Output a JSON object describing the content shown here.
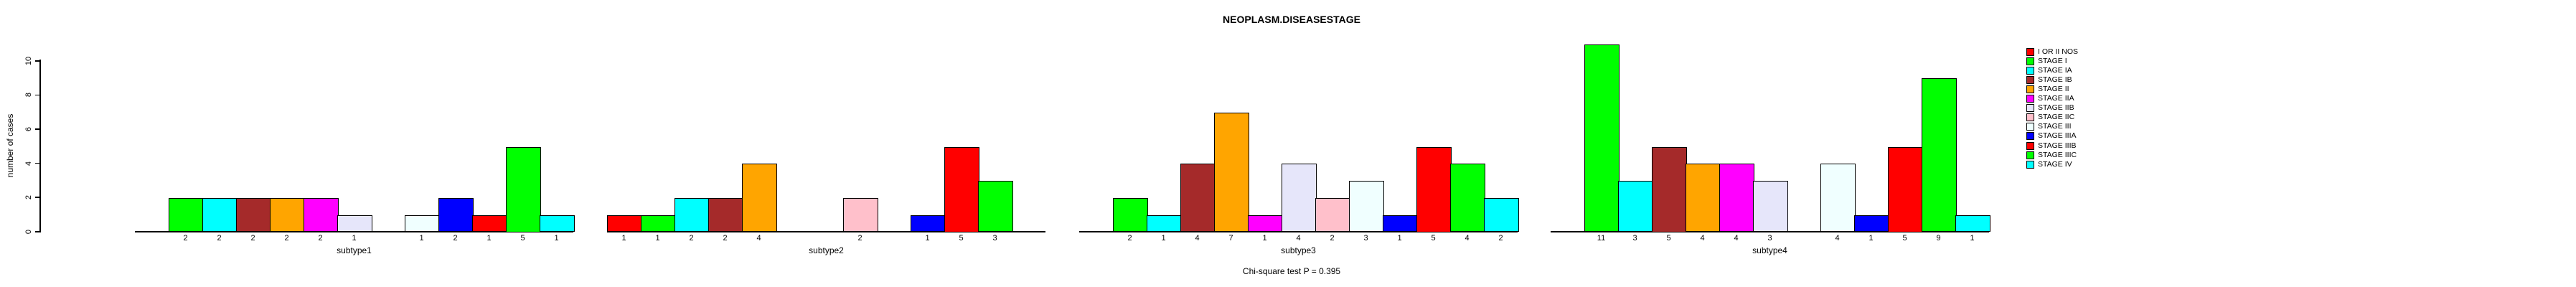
{
  "title": "NEOPLASM.DISEASESTAGE",
  "subtitle": "Chi-square test P = 0.395",
  "y_axis_label": "number of cases",
  "chart_data": {
    "type": "bar",
    "title": "NEOPLASM.DISEASESTAGE",
    "xlabel": "",
    "ylabel": "number of cases",
    "annotation": "Chi-square test P = 0.395",
    "ylim": [
      0,
      11.6
    ],
    "yticks": [
      0,
      2,
      4,
      6,
      8,
      10
    ],
    "grid": false,
    "legend_position": "top-right",
    "zero_bars_hidden": true,
    "categories": [
      "I OR II NOS",
      "STAGE I",
      "STAGE IA",
      "STAGE IB",
      "STAGE II",
      "STAGE IIA",
      "STAGE IIB",
      "STAGE IIC",
      "STAGE III",
      "STAGE IIIA",
      "STAGE IIIB",
      "STAGE IIIC",
      "STAGE IV"
    ],
    "colors": [
      "#FF0000",
      "#00FF00",
      "#00FFFF",
      "#A52A2A",
      "#FFA500",
      "#FF00FF",
      "#E6E6FA",
      "#FFC0CB",
      "#F0FFFF",
      "#0000FF",
      "#FF0000",
      "#00FF00",
      "#00FFFF"
    ],
    "groups": [
      {
        "label": "subtype1",
        "values": [
          0,
          2,
          2,
          2,
          2,
          2,
          1,
          0,
          1,
          2,
          1,
          5,
          1
        ]
      },
      {
        "label": "subtype2",
        "values": [
          1,
          1,
          2,
          2,
          4,
          0,
          0,
          2,
          0,
          1,
          5,
          3,
          0
        ]
      },
      {
        "label": "subtype3",
        "values": [
          0,
          2,
          1,
          4,
          7,
          1,
          4,
          2,
          3,
          1,
          5,
          4,
          2
        ]
      },
      {
        "label": "subtype4",
        "values": [
          0,
          11,
          3,
          5,
          4,
          4,
          3,
          0,
          4,
          1,
          5,
          9,
          1
        ]
      }
    ]
  }
}
